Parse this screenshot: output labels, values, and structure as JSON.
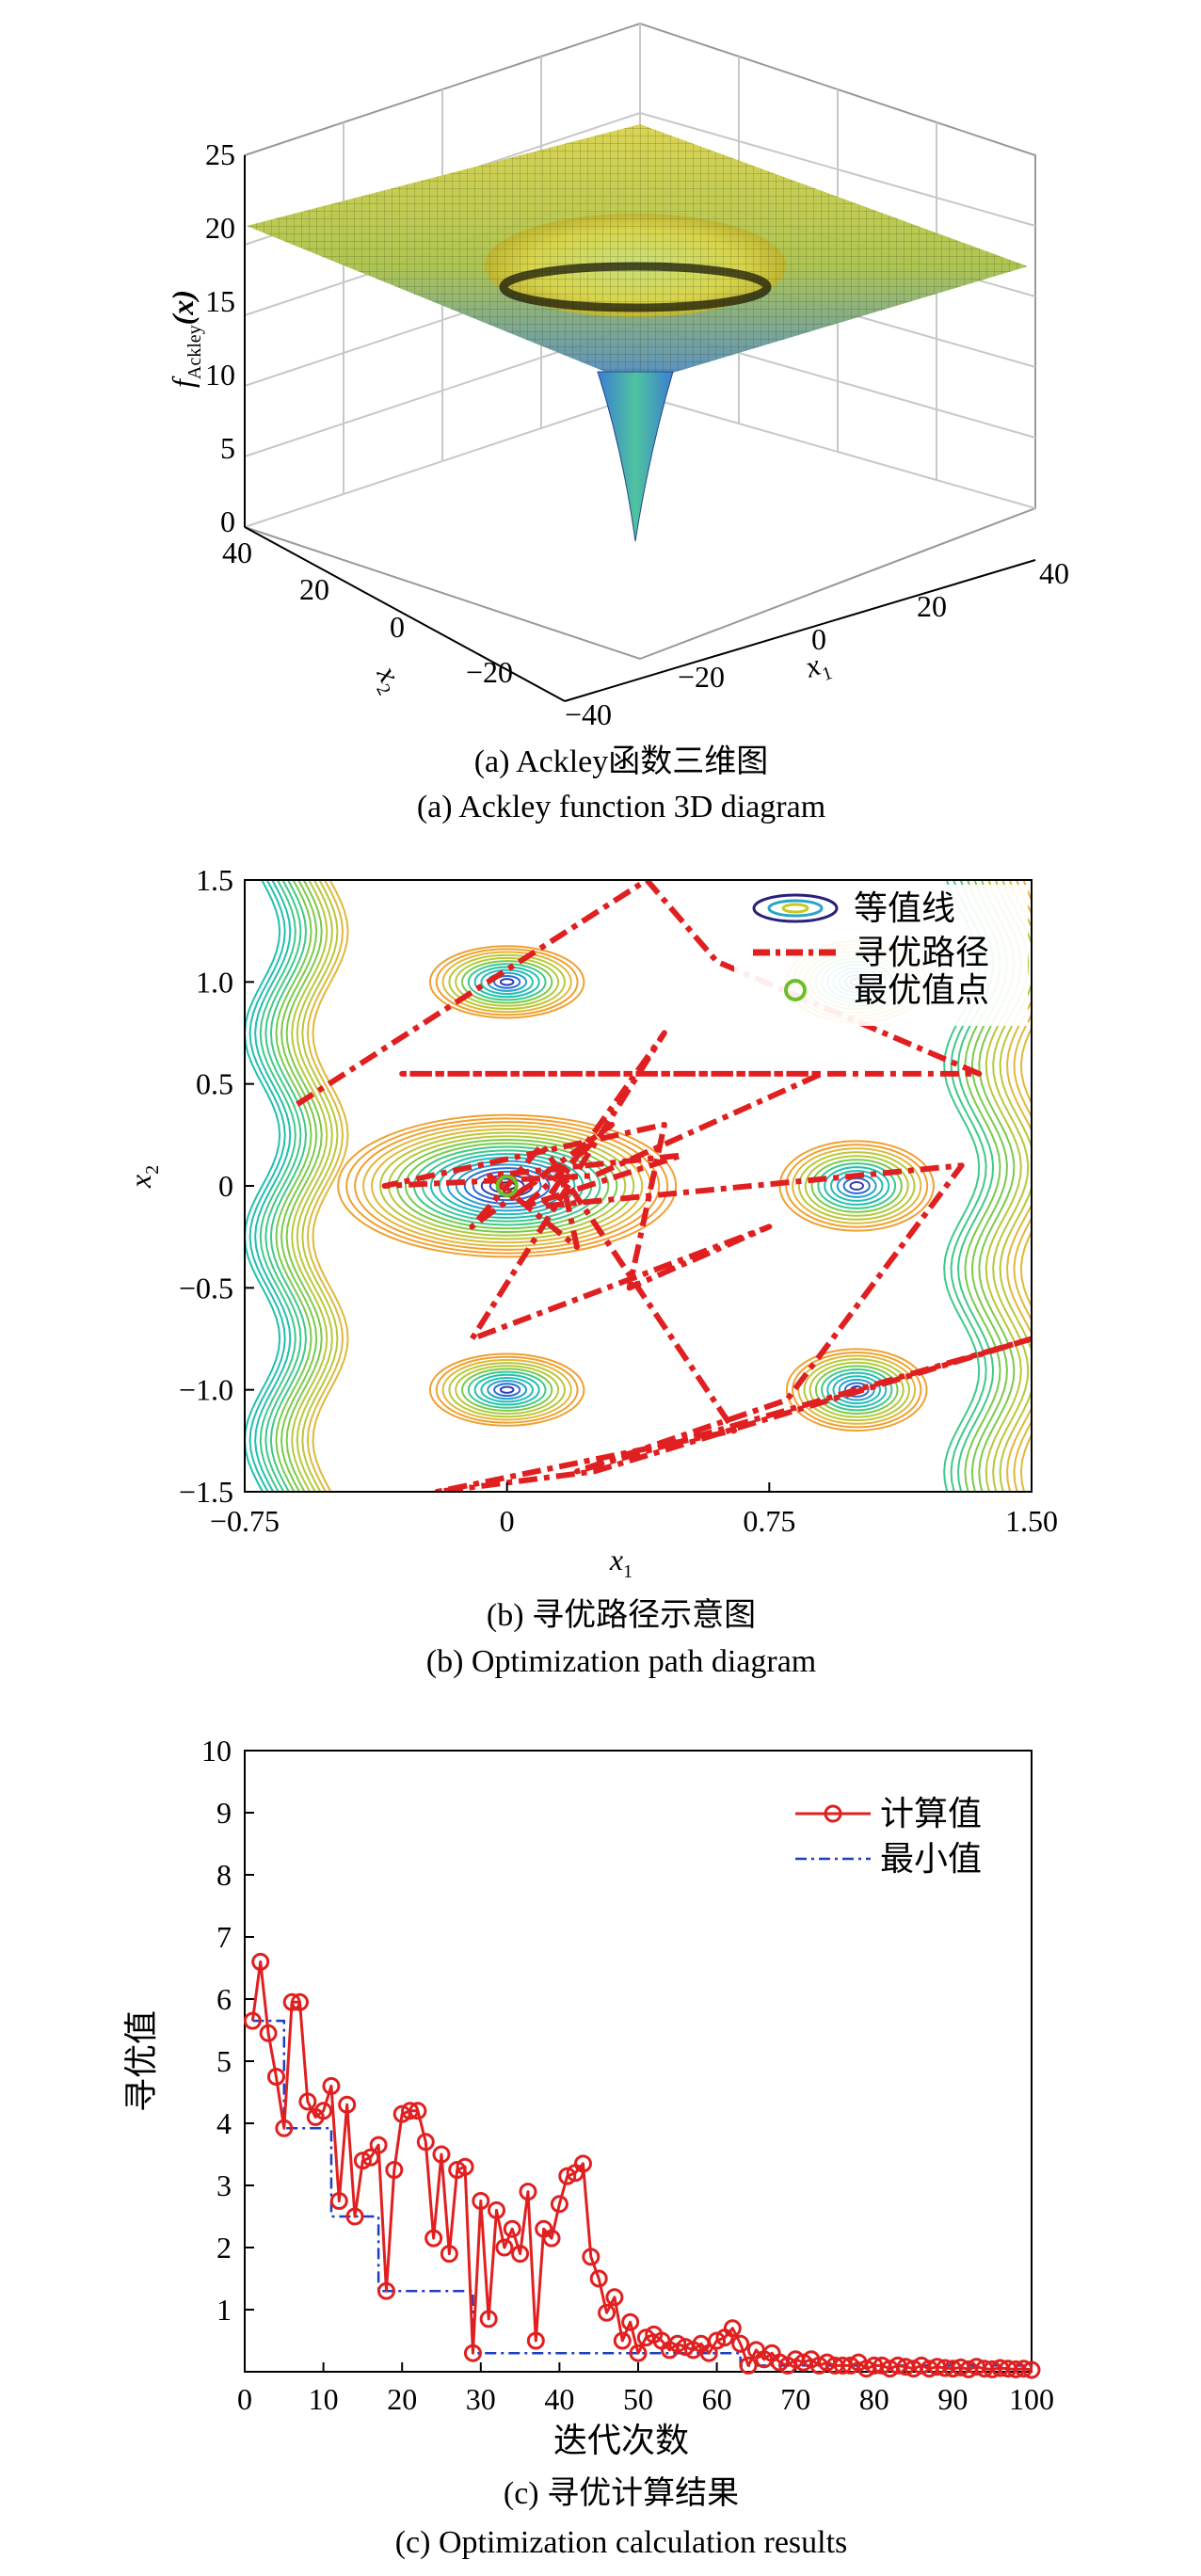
{
  "chart_data": [
    {
      "id": "a",
      "type": "surface3d",
      "function": "Ackley",
      "zlabel_main": "f",
      "zlabel_sub": "Ackley",
      "zlabel_arg": "(x)",
      "x1_label": "x",
      "x1_sub": "1",
      "x2_label": "x",
      "x2_sub": "2",
      "z_ticks": [
        "0",
        "5",
        "10",
        "15",
        "20",
        "25"
      ],
      "x1_ticks": [
        "−40",
        "−20",
        "0",
        "20",
        "40"
      ],
      "x2_ticks": [
        "−40",
        "−20",
        "0",
        "20",
        "40"
      ],
      "zlim": [
        0,
        25
      ],
      "caption_cn": "(a) Ackley函数三维图",
      "caption_en": "(a) Ackley function 3D diagram"
    },
    {
      "id": "b",
      "type": "contour",
      "xlim": [
        -0.75,
        1.5
      ],
      "ylim": [
        -1.5,
        1.5
      ],
      "x_ticks": [
        "−0.75",
        "0",
        "0.75",
        "1.50"
      ],
      "y_ticks": [
        "1.5",
        "1.0",
        "0.5",
        "0",
        "−0.5",
        "−1.0",
        "−1.5"
      ],
      "xlabel": "x",
      "xlabel_sub": "1",
      "ylabel": "x",
      "ylabel_sub": "2",
      "legend": [
        "等值线",
        "寻优路径",
        "最优值点"
      ],
      "optimum": [
        0,
        0
      ],
      "path": [
        [
          -0.6,
          0.4
        ],
        [
          0.4,
          1.5
        ],
        [
          0.6,
          1.1
        ],
        [
          1.35,
          0.55
        ],
        [
          -0.3,
          0.55
        ],
        [
          0.9,
          0.55
        ],
        [
          0.25,
          0.05
        ],
        [
          -0.35,
          0.0
        ],
        [
          0.45,
          0.3
        ],
        [
          0.35,
          -0.5
        ],
        [
          0.75,
          -0.2
        ],
        [
          -0.1,
          -0.75
        ],
        [
          0.45,
          0.75
        ],
        [
          0.1,
          -0.1
        ],
        [
          1.3,
          0.1
        ],
        [
          0.8,
          -1.05
        ],
        [
          0.2,
          -1.4
        ],
        [
          1.5,
          -0.75
        ],
        [
          0.25,
          -1.4
        ],
        [
          -0.2,
          -1.5
        ],
        [
          0.65,
          -1.2
        ],
        [
          0.1,
          0.2
        ],
        [
          -0.1,
          -0.2
        ],
        [
          0.3,
          0.3
        ],
        [
          0.05,
          -0.1
        ],
        [
          0.5,
          0.15
        ],
        [
          -0.05,
          0.05
        ],
        [
          0.2,
          -0.3
        ],
        [
          0.15,
          0.1
        ],
        [
          0.02,
          -0.05
        ]
      ],
      "caption_cn": "(b) 寻优路径示意图",
      "caption_en": "(b) Optimization path diagram"
    },
    {
      "id": "c",
      "type": "line",
      "xlim": [
        0,
        100
      ],
      "ylim": [
        0,
        10
      ],
      "x_ticks": [
        "0",
        "10",
        "20",
        "30",
        "40",
        "50",
        "60",
        "70",
        "80",
        "90",
        "100"
      ],
      "y_ticks": [
        "1",
        "2",
        "3",
        "4",
        "5",
        "6",
        "7",
        "8",
        "9",
        "10"
      ],
      "ylabel": "寻优值",
      "xlabel": "迭代次数",
      "legend": [
        "计算值",
        "最小值"
      ],
      "series": [
        {
          "name": "计算值",
          "color": "#e02020",
          "x": [
            1,
            2,
            3,
            4,
            5,
            6,
            7,
            8,
            9,
            10,
            11,
            12,
            13,
            14,
            15,
            16,
            17,
            18,
            19,
            20,
            21,
            22,
            23,
            24,
            25,
            26,
            27,
            28,
            29,
            30,
            31,
            32,
            33,
            34,
            35,
            36,
            37,
            38,
            39,
            40,
            41,
            42,
            43,
            44,
            45,
            46,
            47,
            48,
            49,
            50,
            51,
            52,
            53,
            54,
            55,
            56,
            57,
            58,
            59,
            60,
            61,
            62,
            63,
            64,
            65,
            66,
            67,
            68,
            69,
            70,
            71,
            72,
            73,
            74,
            75,
            76,
            77,
            78,
            79,
            80,
            81,
            82,
            83,
            84,
            85,
            86,
            87,
            88,
            89,
            90,
            91,
            92,
            93,
            94,
            95,
            96,
            97,
            98,
            99,
            100
          ],
          "values": [
            5.65,
            6.6,
            5.45,
            4.75,
            3.92,
            5.95,
            5.95,
            4.35,
            4.1,
            4.2,
            4.6,
            2.75,
            4.3,
            2.5,
            3.4,
            3.45,
            3.65,
            1.3,
            3.25,
            4.15,
            4.2,
            4.2,
            3.7,
            2.15,
            3.5,
            1.9,
            3.25,
            3.3,
            0.3,
            2.75,
            0.85,
            2.6,
            2.0,
            2.3,
            1.9,
            2.9,
            0.5,
            2.3,
            2.15,
            2.7,
            3.15,
            3.2,
            3.35,
            1.85,
            1.5,
            0.95,
            1.2,
            0.5,
            0.8,
            0.3,
            0.55,
            0.6,
            0.5,
            0.35,
            0.45,
            0.4,
            0.35,
            0.45,
            0.3,
            0.5,
            0.55,
            0.7,
            0.45,
            0.1,
            0.35,
            0.2,
            0.3,
            0.15,
            0.1,
            0.2,
            0.15,
            0.2,
            0.1,
            0.15,
            0.1,
            0.1,
            0.1,
            0.15,
            0.05,
            0.1,
            0.1,
            0.05,
            0.1,
            0.08,
            0.05,
            0.1,
            0.05,
            0.08,
            0.06,
            0.05,
            0.07,
            0.04,
            0.08,
            0.05,
            0.04,
            0.06,
            0.05,
            0.04,
            0.05,
            0.03
          ]
        },
        {
          "name": "最小值",
          "color": "#1f3fbf",
          "x": [
            1,
            5,
            10,
            11,
            16,
            17,
            18,
            28,
            29,
            50,
            63,
            100
          ],
          "values": [
            5.65,
            3.92,
            3.92,
            2.5,
            2.5,
            1.3,
            1.3,
            1.3,
            0.3,
            0.3,
            0.1,
            0.03
          ]
        }
      ],
      "caption_cn": "(c) 寻优计算结果",
      "caption_en": "(c) Optimization calculation results"
    }
  ]
}
